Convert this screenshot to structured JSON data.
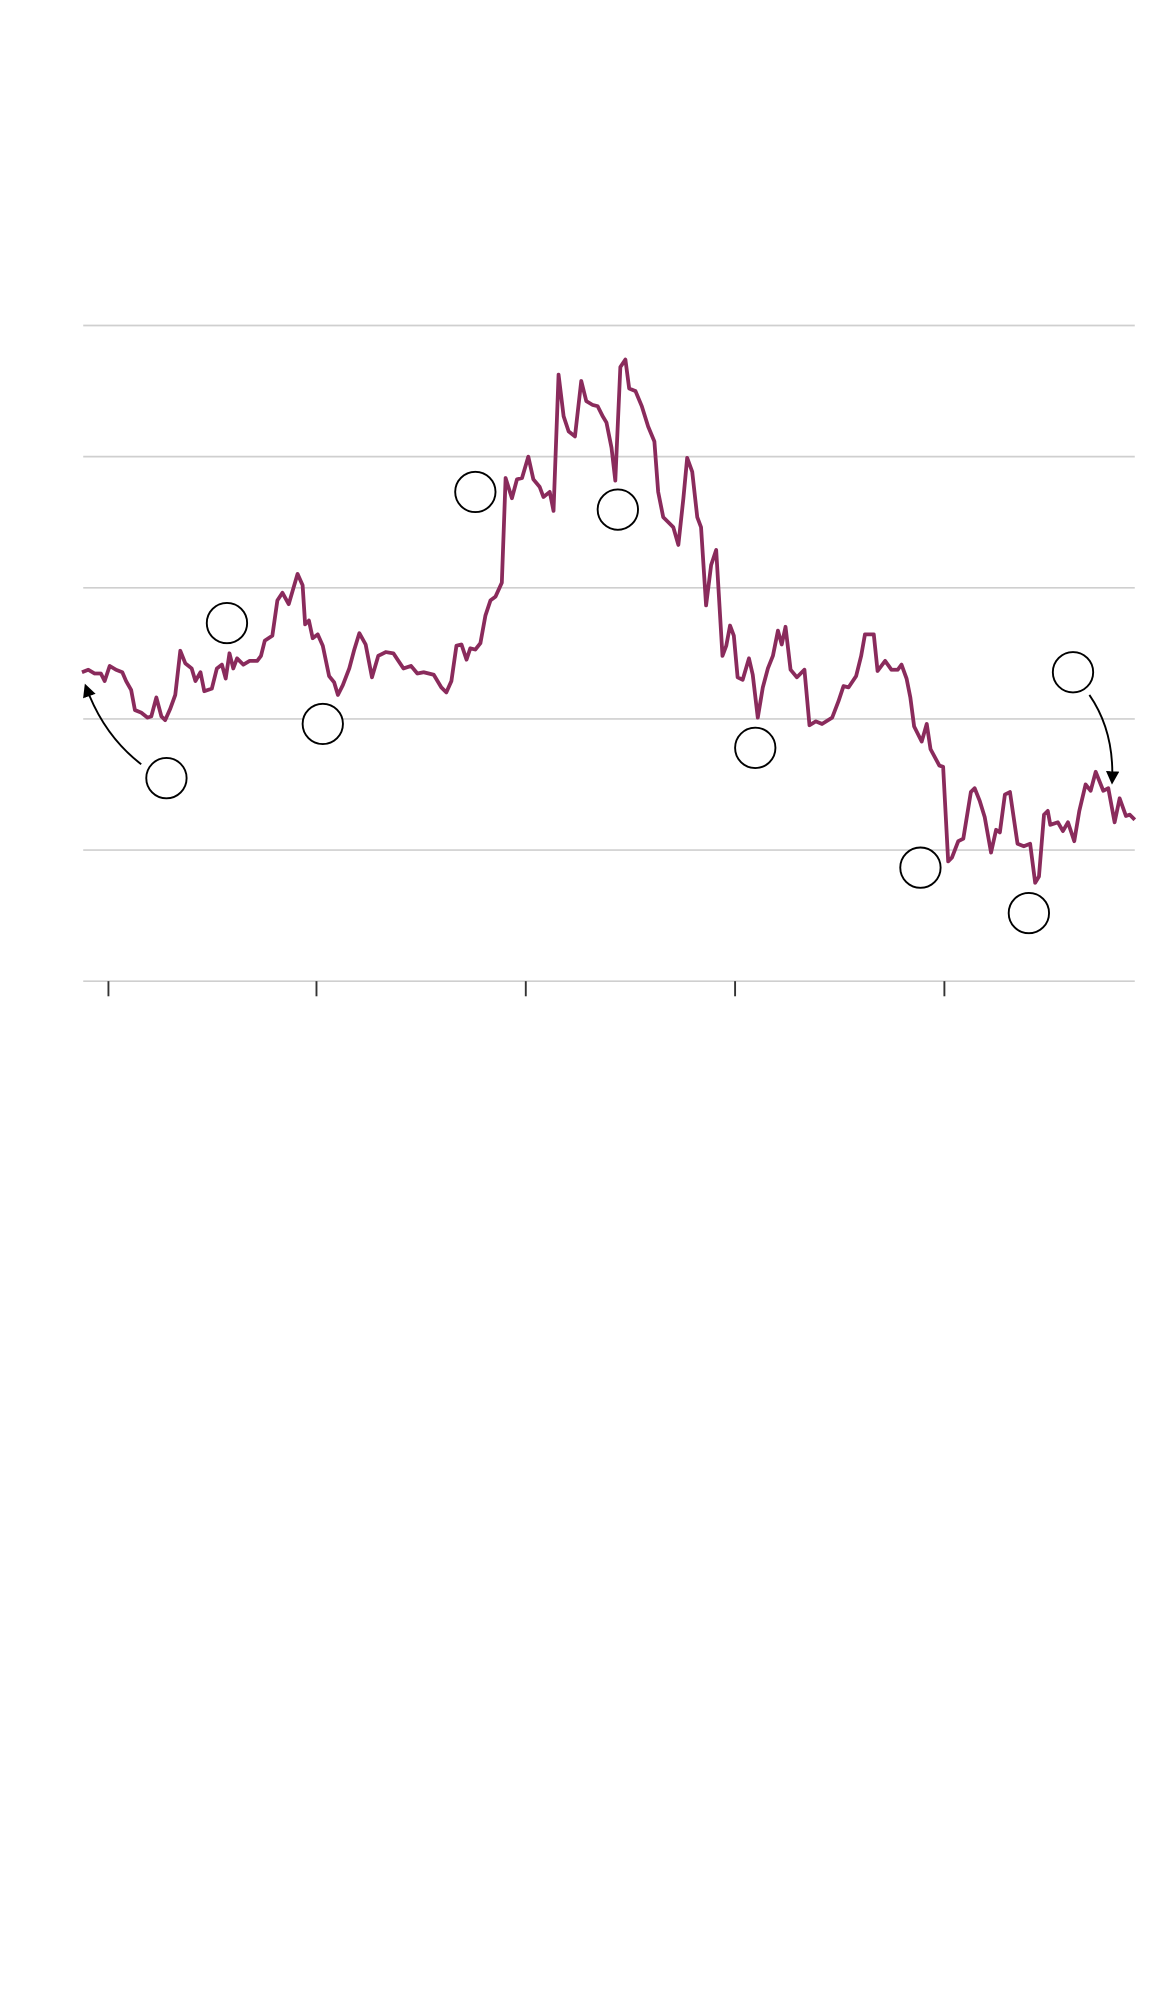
{
  "chart_data": {
    "type": "line",
    "color": "#8a2b5c",
    "grid": true,
    "xlim": [
      -21,
      814
    ],
    "xticks": [
      0,
      165,
      331,
      497,
      663
    ],
    "ylim": [
      0,
      520
    ],
    "yticks": [
      0,
      104,
      208,
      312,
      416,
      520
    ],
    "x": [
      -21,
      -16,
      -11,
      -6,
      -3,
      1,
      6,
      11,
      14,
      18,
      21,
      26,
      31,
      34,
      38,
      42,
      45,
      49,
      53,
      57,
      61,
      66,
      69,
      73,
      76,
      82,
      86,
      90,
      93,
      96,
      99,
      102,
      107,
      112,
      118,
      121,
      124,
      130,
      134,
      138,
      143,
      150,
      154,
      156,
      159,
      162,
      166,
      170,
      175,
      179,
      182,
      186,
      191,
      195,
      199,
      204,
      209,
      214,
      220,
      226,
      230,
      234,
      240,
      245,
      250,
      258,
      264,
      268,
      272,
      276,
      280,
      284,
      287,
      291,
      295,
      299,
      303,
      307,
      312,
      315,
      320,
      324,
      328,
      333,
      337,
      342,
      345,
      350,
      353,
      357,
      361,
      365,
      370,
      375,
      379,
      384,
      388,
      392,
      395,
      399,
      402,
      406,
      410,
      413,
      418,
      423,
      428,
      433,
      436,
      440,
      444,
      448,
      452,
      456,
      459,
      463,
      467,
      470,
      474,
      478,
      482,
      487,
      490,
      493,
      496,
      499,
      503,
      508,
      511,
      515,
      519,
      523,
      527,
      531,
      534,
      537,
      541,
      546,
      552,
      556,
      561,
      566,
      574,
      579,
      583,
      587,
      593,
      597,
      600,
      607,
      610,
      616,
      621,
      626,
      629,
      633,
      636,
      639,
      645,
      649,
      652,
      659,
      662,
      666,
      669,
      674,
      678,
      684,
      687,
      691,
      695,
      700,
      704,
      707,
      711,
      715,
      721,
      726,
      731,
      735,
      738,
      742,
      745,
      747,
      753,
      757,
      761,
      766,
      770,
      775,
      779,
      783,
      789,
      793,
      798,
      802,
      807,
      810,
      814
    ],
    "values": [
      245,
      247,
      244,
      244,
      238,
      250,
      247,
      245,
      238,
      231,
      215,
      213,
      209,
      210,
      225,
      210,
      207,
      216,
      227,
      262,
      252,
      248,
      238,
      245,
      230,
      232,
      248,
      251,
      240,
      260,
      248,
      256,
      251,
      254,
      254,
      258,
      270,
      274,
      302,
      308,
      299,
      323,
      314,
      283,
      286,
      272,
      275,
      266,
      242,
      237,
      227,
      235,
      248,
      263,
      276,
      267,
      241,
      258,
      261,
      260,
      254,
      248,
      250,
      244,
      245,
      243,
      233,
      229,
      238,
      266,
      267,
      255,
      264,
      263,
      268,
      290,
      302,
      305,
      316,
      399,
      383,
      398,
      399,
      416,
      398,
      392,
      384,
      388,
      373,
      481,
      448,
      436,
      432,
      476,
      460,
      457,
      456,
      448,
      443,
      423,
      397,
      487,
      493,
      470,
      468,
      456,
      440,
      428,
      388,
      368,
      364,
      360,
      346,
      383,
      415,
      404,
      368,
      360,
      298,
      330,
      342,
      258,
      266,
      282,
      274,
      241,
      239,
      256,
      243,
      209,
      233,
      248,
      258,
      278,
      267,
      281,
      247,
      241,
      247,
      203,
      206,
      204,
      209,
      222,
      234,
      233,
      242,
      258,
      275,
      275,
      246,
      254,
      247,
      247,
      251,
      240,
      225,
      202,
      190,
      204,
      184,
      171,
      170,
      95,
      98,
      111,
      113,
      150,
      153,
      143,
      130,
      102,
      120,
      118,
      148,
      150,
      109,
      107,
      109,
      78,
      83,
      132,
      135,
      124,
      126,
      119,
      126,
      111,
      135,
      156,
      151,
      166,
      151,
      153,
      126,
      145,
      131,
      132,
      128
    ]
  }
}
